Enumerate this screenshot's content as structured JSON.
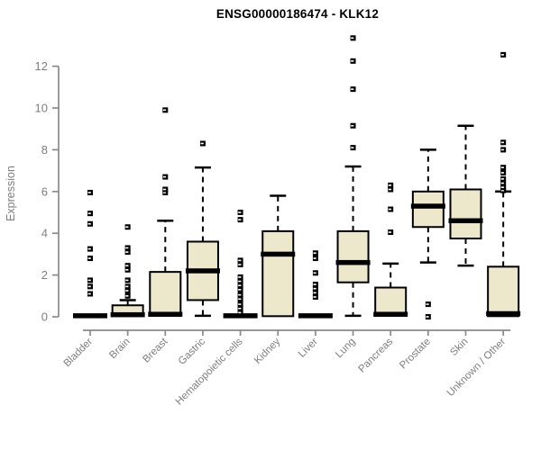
{
  "page": {
    "background": "#ffffff"
  },
  "chart_data": {
    "type": "boxplot",
    "title": "ENSG00000186474 - KLK12",
    "xlabel": "",
    "ylabel": "Expression",
    "ylim": [
      0,
      13.5
    ],
    "yticks": [
      0,
      2,
      4,
      6,
      8,
      10,
      12
    ],
    "grid": false,
    "legend": null,
    "colors": {
      "box_fill": "#EDE8CC",
      "box_stroke": "#000000",
      "median": "#000000",
      "outlier": "#000000",
      "axis": "#8a8a8a",
      "tick_labels": "#7e7e7e",
      "title": "#000000"
    },
    "categories": [
      "Bladder",
      "Brain",
      "Breast",
      "Gastric",
      "Hematopoietic cells",
      "Kidney",
      "Liver",
      "Lung",
      "Pancreas",
      "Prostate",
      "Skin",
      "Unknown / Other"
    ],
    "series": [
      {
        "name": "Bladder",
        "whisker_low": 0.03,
        "q1": 0.03,
        "median": 0.05,
        "q3": 0.05,
        "whisker_high": 0.05,
        "outliers": [
          1.1,
          1.45,
          1.75,
          2.8,
          3.25,
          4.45,
          4.95,
          5.95
        ]
      },
      {
        "name": "Brain",
        "whisker_low": 0.03,
        "q1": 0.05,
        "median": 0.1,
        "q3": 0.55,
        "whisker_high": 0.8,
        "outliers": [
          1.0,
          1.25,
          1.45,
          1.75,
          2.25,
          2.45,
          3.1,
          3.3,
          4.3
        ]
      },
      {
        "name": "Breast",
        "whisker_low": 0.03,
        "q1": 0.05,
        "median": 0.12,
        "q3": 2.15,
        "whisker_high": 4.6,
        "outliers": [
          5.95,
          6.1,
          6.7,
          9.9
        ]
      },
      {
        "name": "Gastric",
        "whisker_low": 0.05,
        "q1": 0.8,
        "median": 2.2,
        "q3": 3.6,
        "whisker_high": 7.15,
        "outliers": [
          8.3
        ]
      },
      {
        "name": "Hematopoietic cells",
        "whisker_low": 0.03,
        "q1": 0.03,
        "median": 0.05,
        "q3": 0.08,
        "whisker_high": 0.08,
        "outliers": [
          0.2,
          0.4,
          0.6,
          0.85,
          1.05,
          1.3,
          1.5,
          1.7,
          1.9,
          2.5,
          2.7,
          4.65,
          5.0
        ]
      },
      {
        "name": "Kidney",
        "whisker_low": 0.03,
        "q1": 0.03,
        "median": 3.0,
        "q3": 4.1,
        "whisker_high": 5.8,
        "outliers": []
      },
      {
        "name": "Liver",
        "whisker_low": 0.03,
        "q1": 0.03,
        "median": 0.05,
        "q3": 0.05,
        "whisker_high": 0.05,
        "outliers": [
          0.95,
          1.15,
          1.35,
          1.55,
          2.1,
          2.8,
          3.05
        ]
      },
      {
        "name": "Lung",
        "whisker_low": 0.05,
        "q1": 1.65,
        "median": 2.6,
        "q3": 4.1,
        "whisker_high": 7.2,
        "outliers": [
          8.1,
          9.15,
          10.9,
          12.25,
          13.35
        ]
      },
      {
        "name": "Pancreas",
        "whisker_low": 0.03,
        "q1": 0.05,
        "median": 0.12,
        "q3": 1.4,
        "whisker_high": 2.55,
        "outliers": [
          4.05,
          5.15,
          6.1,
          6.3
        ]
      },
      {
        "name": "Prostate",
        "whisker_low": 2.6,
        "q1": 4.3,
        "median": 5.3,
        "q3": 6.0,
        "whisker_high": 8.0,
        "outliers": [
          0.0,
          0.6
        ]
      },
      {
        "name": "Skin",
        "whisker_low": 2.45,
        "q1": 3.75,
        "median": 4.6,
        "q3": 6.1,
        "whisker_high": 9.15,
        "outliers": []
      },
      {
        "name": "Unknown / Other",
        "whisker_low": 0.03,
        "q1": 0.03,
        "median": 0.15,
        "q3": 2.4,
        "whisker_high": 6.0,
        "outliers": [
          6.05,
          6.2,
          6.4,
          6.6,
          6.9,
          7.15,
          8.0,
          8.35,
          12.55
        ]
      }
    ]
  }
}
